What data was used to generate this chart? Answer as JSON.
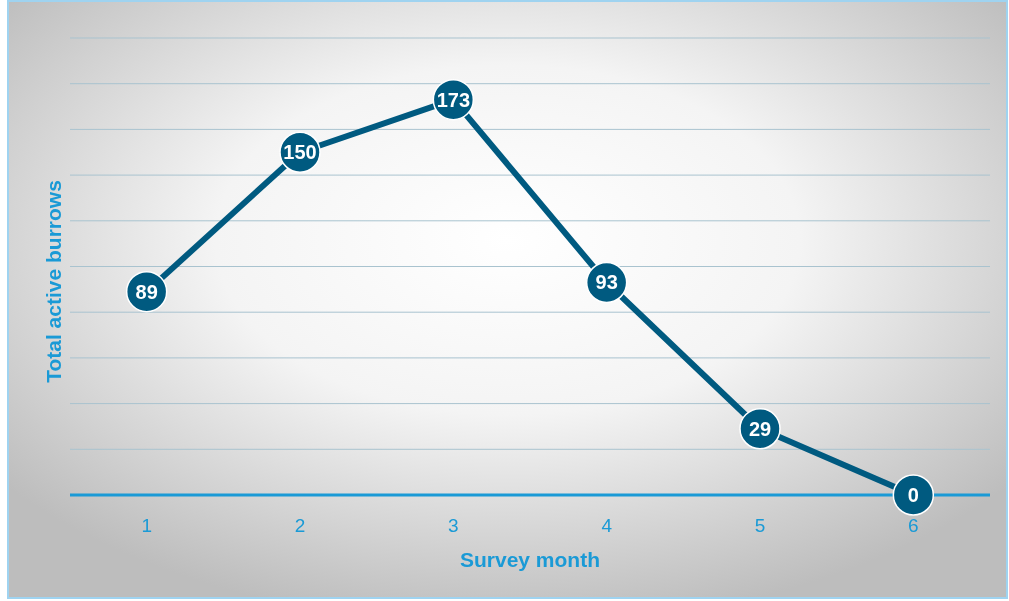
{
  "chart_data": {
    "type": "line",
    "xlabel": "Survey month",
    "ylabel": "Total active burrows",
    "categories": [
      "1",
      "2",
      "3",
      "4",
      "5",
      "6"
    ],
    "series": [
      {
        "color": "#005a80",
        "values": [
          89,
          150,
          173,
          93,
          29,
          0
        ]
      }
    ],
    "ylim": [
      0,
      200
    ],
    "yticks": [
      {
        "value": 0,
        "label": null
      },
      {
        "value": 20,
        "label": null
      },
      {
        "value": 40,
        "label": null
      },
      {
        "value": 60,
        "label": null
      },
      {
        "value": 80,
        "label": null
      },
      {
        "value": 100,
        "label": null
      },
      {
        "value": 120,
        "label": null
      },
      {
        "value": 140,
        "label": null
      },
      {
        "value": 160,
        "label": null
      },
      {
        "value": 180,
        "label": null
      },
      {
        "value": 200,
        "label": null
      }
    ],
    "tick_labels": "x",
    "grid": "y",
    "marker": "circle",
    "line_style": "solid",
    "data_labels": true
  }
}
